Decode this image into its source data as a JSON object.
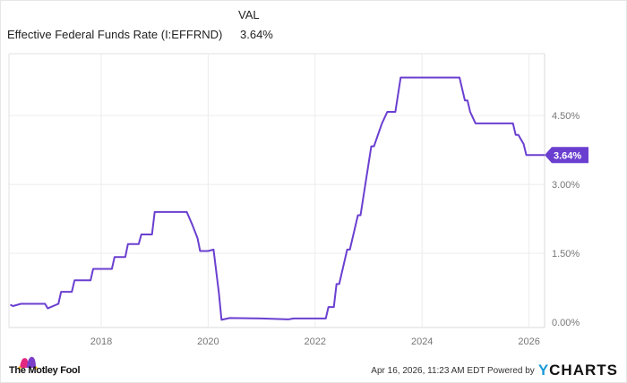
{
  "header": {
    "column_label": "VAL",
    "series_name": "Effective Federal Funds Rate (I:EFFRND)",
    "series_value": "3.64%"
  },
  "chart_data": {
    "type": "line",
    "title": "Effective Federal Funds Rate (I:EFFRND)",
    "xlabel": "",
    "ylabel": "",
    "x_ticks": [
      "2018",
      "2020",
      "2022",
      "2024",
      "2026"
    ],
    "y_ticks": [
      "0.00%",
      "1.50%",
      "3.00%",
      "4.50%"
    ],
    "ylim": [
      0,
      5.5
    ],
    "grid": true,
    "legend_position": "top-left",
    "series": [
      {
        "name": "Effective Federal Funds Rate (I:EFFRND)",
        "color": "#6a3fd0",
        "last_value_label": "3.64%",
        "x": [
          2016.3,
          2016.35,
          2016.5,
          2016.95,
          2017.0,
          2017.2,
          2017.25,
          2017.45,
          2017.5,
          2017.8,
          2017.85,
          2017.95,
          2018.2,
          2018.25,
          2018.45,
          2018.5,
          2018.7,
          2018.75,
          2018.95,
          2019.0,
          2019.5,
          2019.6,
          2019.7,
          2019.8,
          2019.85,
          2020.0,
          2020.1,
          2020.2,
          2020.25,
          2020.4,
          2021.0,
          2021.5,
          2021.6,
          2022.2,
          2022.25,
          2022.35,
          2022.4,
          2022.45,
          2022.6,
          2022.65,
          2022.8,
          2022.85,
          2022.95,
          2023.05,
          2023.1,
          2023.25,
          2023.35,
          2023.5,
          2023.6,
          2024.4,
          2024.7,
          2024.8,
          2024.85,
          2024.9,
          2025.0,
          2025.7,
          2025.75,
          2025.8,
          2025.9,
          2025.95,
          2026.3
        ],
        "y": [
          0.38,
          0.35,
          0.4,
          0.4,
          0.3,
          0.4,
          0.66,
          0.66,
          0.91,
          0.91,
          1.16,
          1.16,
          1.16,
          1.42,
          1.42,
          1.7,
          1.7,
          1.91,
          1.91,
          2.4,
          2.4,
          2.4,
          2.13,
          1.83,
          1.55,
          1.55,
          1.58,
          0.65,
          0.05,
          0.09,
          0.08,
          0.06,
          0.08,
          0.08,
          0.33,
          0.33,
          0.83,
          0.83,
          1.58,
          1.58,
          2.33,
          2.33,
          3.08,
          3.83,
          3.83,
          4.33,
          4.58,
          4.58,
          5.33,
          5.33,
          5.33,
          4.83,
          4.83,
          4.58,
          4.33,
          4.33,
          4.08,
          4.08,
          3.88,
          3.64,
          3.64
        ]
      }
    ]
  },
  "axis": {
    "y_labels": [
      "4.50%",
      "3.00%",
      "1.50%",
      "0.00%"
    ],
    "x_labels": [
      "2018",
      "2020",
      "2022",
      "2024",
      "2026"
    ]
  },
  "footer": {
    "brand": "The Motley Fool",
    "timestamp": "Apr 16, 2026, 11:23 AM EDT Powered by",
    "provider_y": "Y",
    "provider_rest": "CHARTS"
  }
}
